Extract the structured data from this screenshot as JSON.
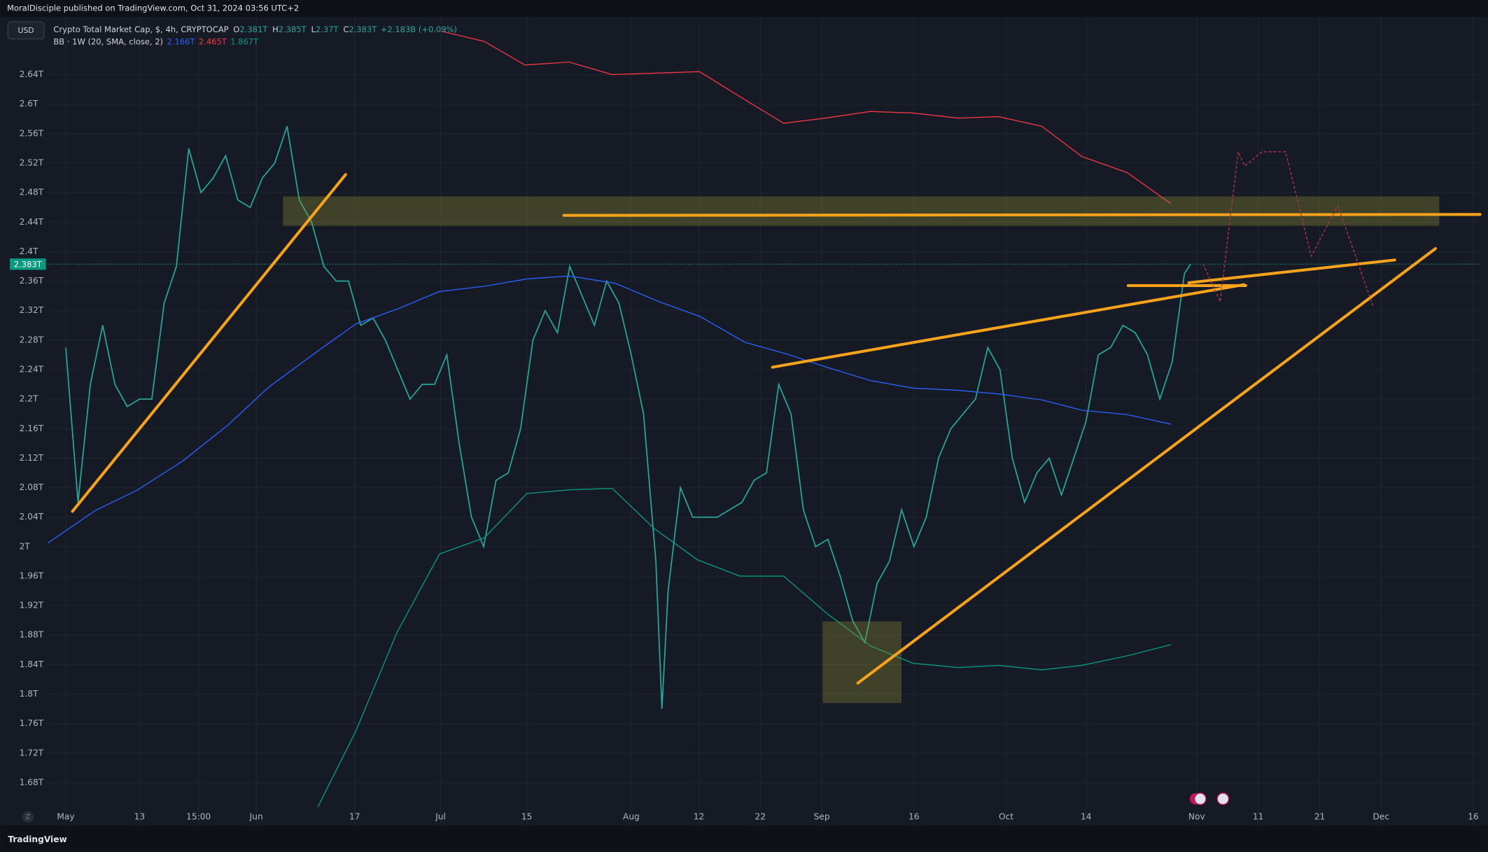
{
  "header": {
    "publisher": "MoralDisciple published on TradingView.com, Oct 31, 2024 03:56 UTC+2",
    "currency_button": "USD",
    "symbol": "Crypto Total Market Cap, $, 4h, CRYPTOCAP",
    "ohlc": [
      {
        "label": "O",
        "value": "2.381T"
      },
      {
        "label": "H",
        "value": "2.385T"
      },
      {
        "label": "L",
        "value": "2.37T"
      },
      {
        "label": "C",
        "value": "2.383T"
      }
    ],
    "change": "+2.183B (+0.09%)",
    "indicator": "BB · 1W (20, SMA, close, 2)",
    "indicator_values": [
      {
        "value": "2.166T",
        "color": "#2962ff"
      },
      {
        "value": "2.465T",
        "color": "#f23645"
      },
      {
        "value": "1.867T",
        "color": "#089981"
      }
    ],
    "zoom_button": "Z",
    "footer": "TradingView"
  },
  "chart_data": {
    "type": "line",
    "xlim": [
      -2.93,
      230.1
    ],
    "ylim": [
      1.622,
      2.718
    ],
    "xticks": [
      {
        "value": 0,
        "label": "May"
      },
      {
        "value": 12,
        "label": "13"
      },
      {
        "value": 21.6,
        "label": "15:00"
      },
      {
        "value": 31,
        "label": "Jun"
      },
      {
        "value": 47,
        "label": "17"
      },
      {
        "value": 61,
        "label": "Jul"
      },
      {
        "value": 75,
        "label": "15"
      },
      {
        "value": 92,
        "label": "Aug"
      },
      {
        "value": 103,
        "label": "12"
      },
      {
        "value": 113,
        "label": "22"
      },
      {
        "value": 123,
        "label": "Sep"
      },
      {
        "value": 138,
        "label": "16"
      },
      {
        "value": 153,
        "label": "Oct"
      },
      {
        "value": 166,
        "label": "14"
      },
      {
        "value": 184,
        "label": "Nov"
      },
      {
        "value": 194,
        "label": "11"
      },
      {
        "value": 204,
        "label": "21"
      },
      {
        "value": 214,
        "label": "Dec"
      },
      {
        "value": 229,
        "label": "16"
      }
    ],
    "yticks": [
      {
        "value": 1.68,
        "label": "1.68T"
      },
      {
        "value": 1.72,
        "label": "1.72T"
      },
      {
        "value": 1.76,
        "label": "1.76T"
      },
      {
        "value": 1.8,
        "label": "1.8T"
      },
      {
        "value": 1.84,
        "label": "1.84T"
      },
      {
        "value": 1.88,
        "label": "1.88T"
      },
      {
        "value": 1.92,
        "label": "1.92T"
      },
      {
        "value": 1.96,
        "label": "1.96T"
      },
      {
        "value": 2,
        "label": "2T"
      },
      {
        "value": 2.04,
        "label": "2.04T"
      },
      {
        "value": 2.08,
        "label": "2.08T"
      },
      {
        "value": 2.12,
        "label": "2.12T"
      },
      {
        "value": 2.16,
        "label": "2.16T"
      },
      {
        "value": 2.2,
        "label": "2.2T"
      },
      {
        "value": 2.24,
        "label": "2.24T"
      },
      {
        "value": 2.28,
        "label": "2.28T"
      },
      {
        "value": 2.32,
        "label": "2.32T"
      },
      {
        "value": 2.36,
        "label": "2.36T"
      },
      {
        "value": 2.4,
        "label": "2.4T"
      },
      {
        "value": 2.44,
        "label": "2.44T"
      },
      {
        "value": 2.48,
        "label": "2.48T"
      },
      {
        "value": 2.52,
        "label": "2.52T"
      },
      {
        "value": 2.56,
        "label": "2.56T"
      },
      {
        "value": 2.6,
        "label": "2.6T"
      },
      {
        "value": 2.64,
        "label": "2.64T"
      }
    ],
    "grid": true,
    "last_price": {
      "value": 2.383,
      "label": "2.383T"
    },
    "series": [
      {
        "color": "#26a69a",
        "width": 1.3,
        "x": [
          0,
          2,
          4,
          6,
          8,
          10,
          12,
          14,
          16,
          18,
          20,
          22,
          24,
          26,
          28,
          30,
          32,
          34,
          36,
          38,
          40,
          42,
          44,
          46,
          48,
          50,
          52,
          54,
          56,
          58,
          60,
          62,
          64,
          66,
          68,
          70,
          72,
          74,
          76,
          78,
          80,
          82,
          84,
          86,
          88,
          90,
          92,
          94,
          96,
          97,
          98,
          100,
          102,
          104,
          106,
          108,
          110,
          112,
          114,
          116,
          118,
          120,
          122,
          124,
          126,
          128,
          130,
          132,
          134,
          136,
          138,
          140,
          142,
          144,
          146,
          148,
          150,
          152,
          154,
          156,
          158,
          160,
          162,
          164,
          166,
          168,
          170,
          172,
          174,
          176,
          178,
          180,
          182,
          183
        ],
        "values": [
          2.27,
          2.06,
          2.22,
          2.3,
          2.22,
          2.19,
          2.2,
          2.2,
          2.33,
          2.38,
          2.54,
          2.48,
          2.5,
          2.53,
          2.47,
          2.46,
          2.5,
          2.52,
          2.57,
          2.47,
          2.44,
          2.38,
          2.36,
          2.36,
          2.3,
          2.31,
          2.28,
          2.24,
          2.2,
          2.22,
          2.22,
          2.26,
          2.14,
          2.04,
          2.0,
          2.09,
          2.1,
          2.16,
          2.28,
          2.32,
          2.29,
          2.38,
          2.34,
          2.3,
          2.36,
          2.33,
          2.26,
          2.18,
          1.98,
          1.78,
          1.94,
          2.08,
          2.04,
          2.04,
          2.04,
          2.05,
          2.06,
          2.09,
          2.1,
          2.22,
          2.18,
          2.05,
          2.0,
          2.01,
          1.96,
          1.9,
          1.87,
          1.95,
          1.98,
          2.05,
          2.0,
          2.04,
          2.12,
          2.16,
          2.18,
          2.2,
          2.27,
          2.24,
          2.12,
          2.06,
          2.1,
          2.12,
          2.07,
          2.12,
          2.17,
          2.26,
          2.27,
          2.3,
          2.29,
          2.26,
          2.2,
          2.25,
          2.37,
          2.383
        ]
      },
      {
        "color": "#2962ff",
        "width": 1,
        "x": [
          -2.9,
          4.8,
          11.7,
          19,
          26.4,
          33,
          40.3,
          47.2,
          53.9,
          60.8,
          68.1,
          75,
          81.9,
          89.4,
          96.6,
          103.2,
          110.5,
          117.4,
          123.9,
          131,
          137.8,
          145.2,
          151.7,
          158.8,
          165.3,
          172.7,
          179.8
        ],
        "values": [
          2.005,
          2.049,
          2.077,
          2.116,
          2.165,
          2.216,
          2.261,
          2.302,
          2.322,
          2.346,
          2.353,
          2.363,
          2.367,
          2.357,
          2.332,
          2.312,
          2.277,
          2.261,
          2.243,
          2.225,
          2.215,
          2.212,
          2.207,
          2.199,
          2.185,
          2.179,
          2.166
        ]
      },
      {
        "color": "#f23645",
        "width": 1,
        "x": [
          61.1,
          68.1,
          74.7,
          81.9,
          88.9,
          103.1,
          110.5,
          116.8,
          123.6,
          130.9,
          137.8,
          145.2,
          151.7,
          158.8,
          165.3,
          172.7,
          179.8
        ],
        "values": [
          2.699,
          2.685,
          2.653,
          2.657,
          2.64,
          2.644,
          2.606,
          2.574,
          2.581,
          2.59,
          2.588,
          2.581,
          2.583,
          2.57,
          2.529,
          2.507,
          2.465
        ]
      },
      {
        "color": "#089981",
        "width": 1,
        "x": [
          41,
          47.2,
          53.9,
          60.8,
          68.1,
          75,
          81.9,
          88.9,
          95.8,
          102.8,
          109.7,
          116.8,
          123.9,
          131,
          137.8,
          145.2,
          151.7,
          158.8,
          165.3,
          172.7,
          179.8
        ],
        "values": [
          1.647,
          1.75,
          1.884,
          1.99,
          2.012,
          2.072,
          2.077,
          2.079,
          2.024,
          1.982,
          1.96,
          1.96,
          1.909,
          1.865,
          1.842,
          1.836,
          1.839,
          1.833,
          1.839,
          1.852,
          1.867
        ]
      }
    ]
  }
}
